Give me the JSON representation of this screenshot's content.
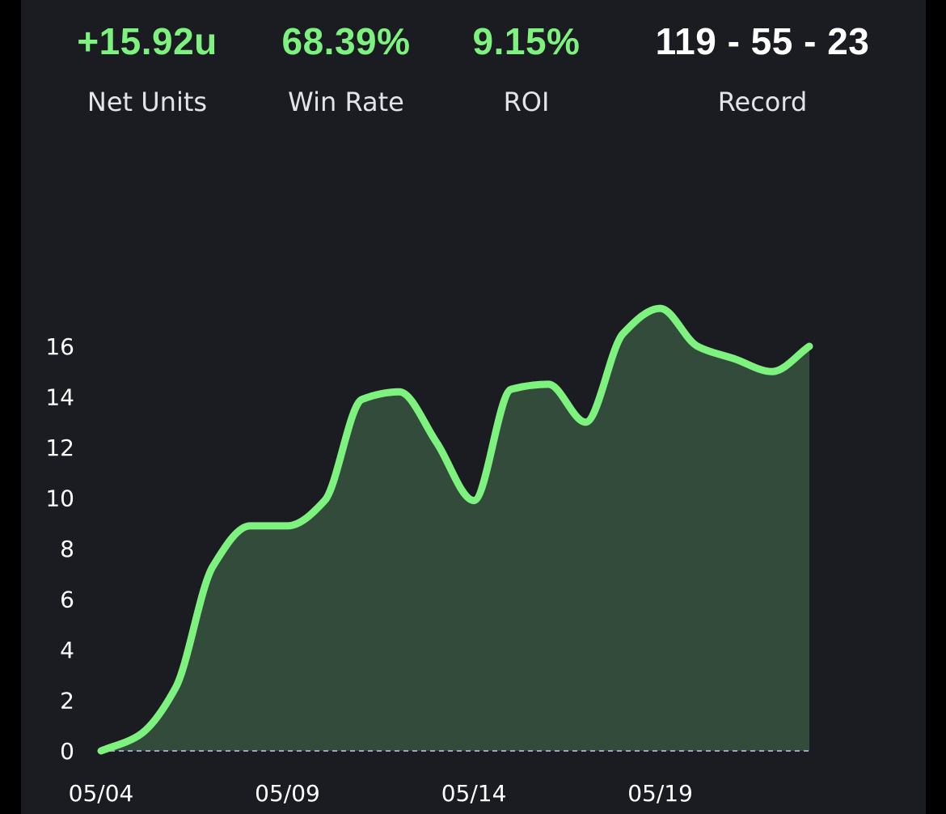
{
  "stats": {
    "net_units": {
      "value": "+15.92u",
      "label": "Net Units"
    },
    "win_rate": {
      "value": "68.39%",
      "label": "Win Rate"
    },
    "roi": {
      "value": "9.15%",
      "label": "ROI"
    },
    "record": {
      "value": "119 - 55 - 23",
      "label": "Record"
    }
  },
  "colors": {
    "positive": "#7ef27e",
    "record": "#ffffff",
    "line": "#7ef27e",
    "area": "#324b3a",
    "baseline": "#9aa6c8",
    "background": "#1b1c22"
  },
  "chart_data": {
    "type": "area",
    "x": [
      "05/04",
      "05/05",
      "05/06",
      "05/07",
      "05/08",
      "05/09",
      "05/10",
      "05/11",
      "05/12",
      "05/13",
      "05/14",
      "05/15",
      "05/16",
      "05/17",
      "05/18",
      "05/19",
      "05/20",
      "05/21",
      "05/22",
      "05/23"
    ],
    "values": [
      0,
      0.6,
      2.5,
      7.3,
      8.9,
      8.9,
      9.9,
      13.9,
      14.2,
      12.2,
      9.9,
      14.3,
      14.5,
      13.0,
      16.5,
      17.5,
      16.0,
      15.5,
      15.0,
      16.0
    ],
    "x_ticks": [
      "05/04",
      "05/09",
      "05/14",
      "05/19"
    ],
    "y_ticks": [
      0,
      2,
      4,
      6,
      8,
      10,
      12,
      14,
      16
    ],
    "ylim": [
      0,
      18
    ],
    "grid": false,
    "legend": "none"
  }
}
